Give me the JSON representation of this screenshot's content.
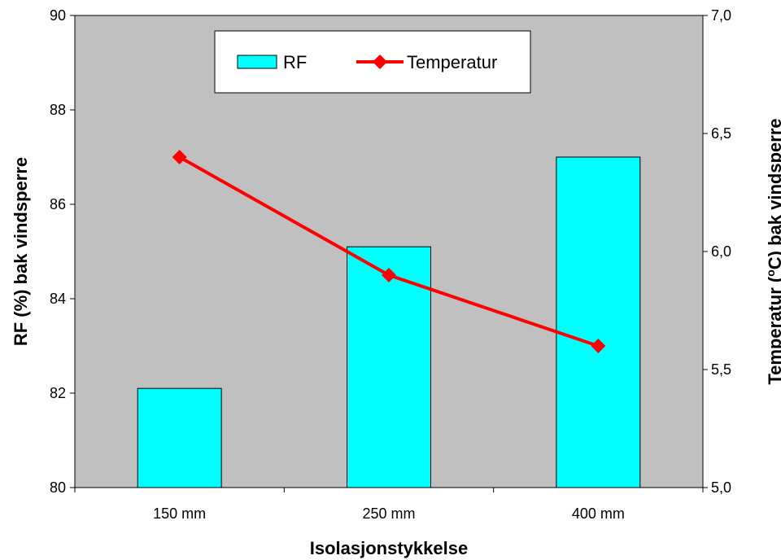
{
  "chart_data": {
    "type": "bar",
    "categories": [
      "150 mm",
      "250 mm",
      "400 mm"
    ],
    "series": [
      {
        "name": "RF",
        "kind": "bar",
        "axis": "left",
        "values": [
          82.1,
          85.1,
          87.0
        ],
        "color": "#00ffff"
      },
      {
        "name": "Temperatur",
        "kind": "line",
        "axis": "right",
        "values": [
          6.4,
          5.9,
          5.6
        ],
        "color": "#ff0000"
      }
    ],
    "xlabel": "Isolasjonstykkelse",
    "ylabel": "RF (%) bak vindsperre",
    "y2label_prefix": "Temperatur (",
    "y2label_degree": "o",
    "y2label_suffix": "C) bak vindsperre",
    "ylim": [
      80,
      90
    ],
    "yticks": [
      "80",
      "82",
      "84",
      "86",
      "88",
      "90"
    ],
    "y2lim": [
      5.0,
      7.0
    ],
    "y2ticks": [
      "5,0",
      "5,5",
      "6,0",
      "6,5",
      "7,0"
    ],
    "plot_background": "#c0c0c0",
    "grid": false,
    "legend_position": "top"
  }
}
